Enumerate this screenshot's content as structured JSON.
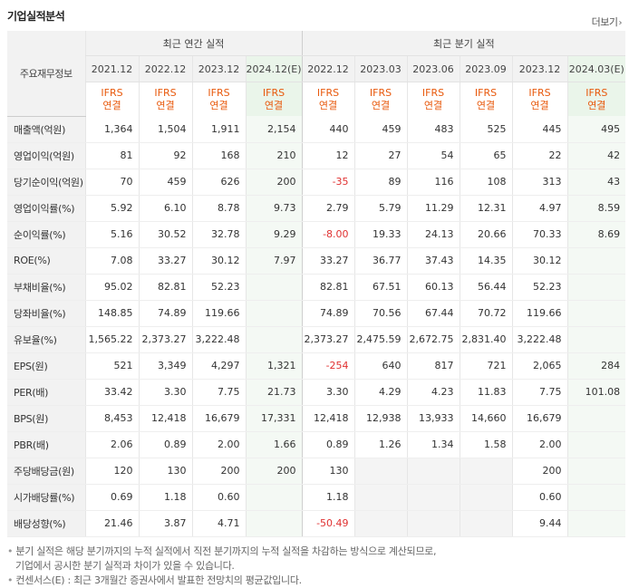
{
  "section_title": "기업실적분석",
  "more_link": "더보기",
  "header": {
    "corner_label": "주요재무정보",
    "annual_group": "최근 연간 실적",
    "quarter_group": "최근 분기 실적",
    "annual_periods": [
      "2021.12",
      "2022.12",
      "2023.12",
      "2024.12(E)"
    ],
    "quarter_periods": [
      "2022.12",
      "2023.03",
      "2023.06",
      "2023.09",
      "2023.12",
      "2024.03(E)"
    ],
    "ifrs_top": "IFRS",
    "ifrs_bottom": "연결"
  },
  "rows": [
    {
      "label": "매출액(억원)",
      "values": [
        "1,364",
        "1,504",
        "1,911",
        "2,154",
        "440",
        "459",
        "483",
        "525",
        "445",
        "495"
      ]
    },
    {
      "label": "영업이익(억원)",
      "values": [
        "81",
        "92",
        "168",
        "210",
        "12",
        "27",
        "54",
        "65",
        "22",
        "42"
      ]
    },
    {
      "label": "당기순이익(억원)",
      "values": [
        "70",
        "459",
        "626",
        "200",
        "-35",
        "89",
        "116",
        "108",
        "313",
        "43"
      ]
    },
    {
      "label": "영업이익률(%)",
      "values": [
        "5.92",
        "6.10",
        "8.78",
        "9.73",
        "2.79",
        "5.79",
        "11.29",
        "12.31",
        "4.97",
        "8.59"
      ]
    },
    {
      "label": "순이익률(%)",
      "values": [
        "5.16",
        "30.52",
        "32.78",
        "9.29",
        "-8.00",
        "19.33",
        "24.13",
        "20.66",
        "70.33",
        "8.69"
      ]
    },
    {
      "label": "ROE(%)",
      "values": [
        "7.08",
        "33.27",
        "30.12",
        "7.97",
        "33.27",
        "36.77",
        "37.43",
        "14.35",
        "30.12",
        ""
      ]
    },
    {
      "label": "부채비율(%)",
      "values": [
        "95.02",
        "82.81",
        "52.23",
        "",
        "82.81",
        "67.51",
        "60.13",
        "56.44",
        "52.23",
        ""
      ]
    },
    {
      "label": "당좌비율(%)",
      "values": [
        "148.85",
        "74.89",
        "119.66",
        "",
        "74.89",
        "70.56",
        "67.44",
        "70.72",
        "119.66",
        ""
      ]
    },
    {
      "label": "유보율(%)",
      "values": [
        "1,565.22",
        "2,373.27",
        "3,222.48",
        "",
        "2,373.27",
        "2,475.59",
        "2,672.75",
        "2,831.40",
        "3,222.48",
        ""
      ]
    },
    {
      "label": "EPS(원)",
      "values": [
        "521",
        "3,349",
        "4,297",
        "1,321",
        "-254",
        "640",
        "817",
        "721",
        "2,065",
        "284"
      ]
    },
    {
      "label": "PER(배)",
      "values": [
        "33.42",
        "3.30",
        "7.75",
        "21.73",
        "3.30",
        "4.29",
        "4.23",
        "11.83",
        "7.75",
        "101.08"
      ]
    },
    {
      "label": "BPS(원)",
      "values": [
        "8,453",
        "12,418",
        "16,679",
        "17,331",
        "12,418",
        "12,938",
        "13,933",
        "14,660",
        "16,679",
        ""
      ]
    },
    {
      "label": "PBR(배)",
      "values": [
        "2.06",
        "0.89",
        "2.00",
        "1.66",
        "0.89",
        "1.26",
        "1.34",
        "1.58",
        "2.00",
        ""
      ]
    },
    {
      "label": "주당배당금(원)",
      "values": [
        "120",
        "130",
        "200",
        "200",
        "130",
        "",
        "",
        "",
        "200",
        ""
      ]
    },
    {
      "label": "시가배당률(%)",
      "values": [
        "0.69",
        "1.18",
        "0.60",
        "",
        "1.18",
        "",
        "",
        "",
        "0.60",
        ""
      ]
    },
    {
      "label": "배당성향(%)",
      "values": [
        "21.46",
        "3.87",
        "4.71",
        "",
        "-50.49",
        "",
        "",
        "",
        "9.44",
        ""
      ]
    }
  ],
  "group_separators_before": [
    3,
    9,
    13
  ],
  "blank_shaded_cells": [
    [
      13,
      5
    ],
    [
      13,
      6
    ],
    [
      13,
      7
    ],
    [
      14,
      5
    ],
    [
      14,
      6
    ],
    [
      14,
      7
    ],
    [
      15,
      5
    ],
    [
      15,
      6
    ],
    [
      15,
      7
    ]
  ],
  "notes": [
    "분기 실적은 해당 분기까지의 누적 실적에서 직전 분기까지의 누적 실적을 차감하는 방식으로 계산되므로,",
    "기업에서 공시한 분기 실적과 차이가 있을 수 있습니다.",
    "컨센서스(E) : 최근 3개월간 증권사에서 발표한 전망치의 평균값입니다."
  ],
  "colors": {
    "ifrs": "#e8590c",
    "negative": "#e03131",
    "estimate_bg": "#f4f9f4"
  }
}
